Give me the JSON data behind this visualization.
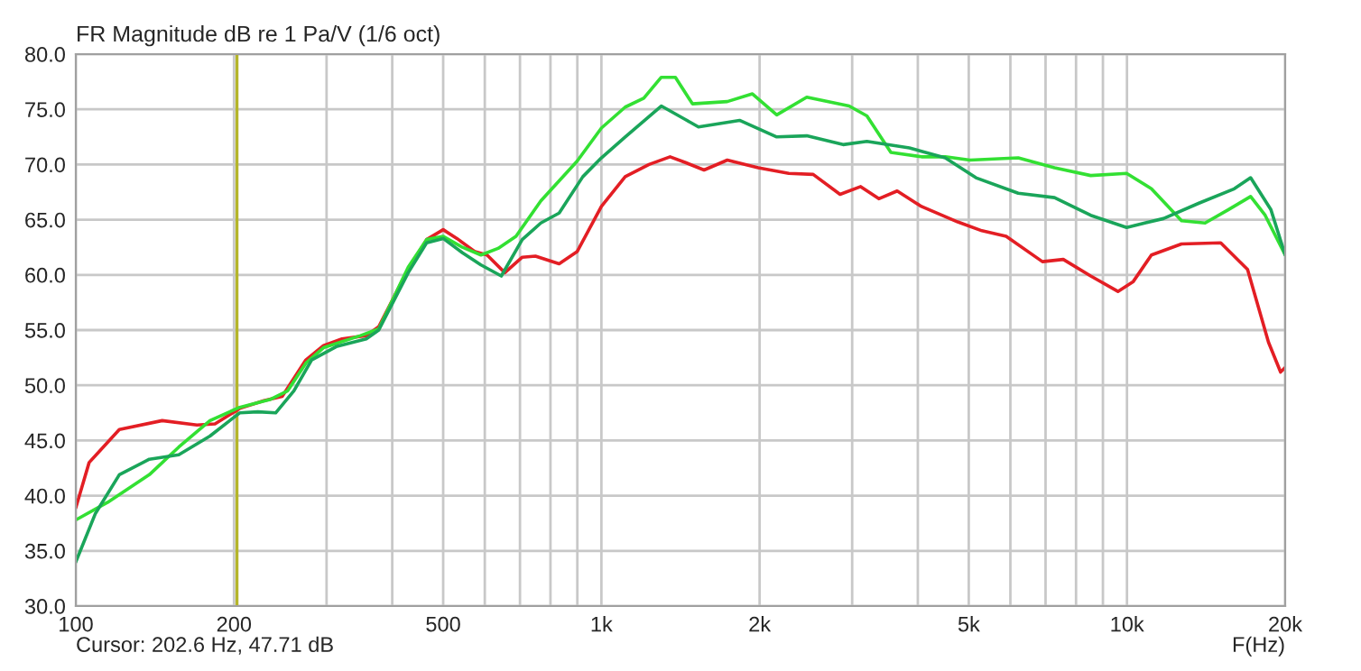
{
  "chart_data": {
    "type": "line",
    "title": "FR Magnitude dB re 1 Pa/V (1/6 oct)",
    "xlabel": "F(Hz)",
    "log": "x",
    "grid": true,
    "marker": "none",
    "line_style": "solid",
    "xlim": [
      100,
      20000
    ],
    "xticks": [
      100,
      200,
      {
        "value": 300,
        "label": null
      },
      {
        "value": 400,
        "label": null
      },
      500,
      {
        "value": 600,
        "label": null
      },
      {
        "value": 700,
        "label": null
      },
      {
        "value": 800,
        "label": null
      },
      {
        "value": 900,
        "label": null
      },
      {
        "value": 1000,
        "label": "1k"
      },
      {
        "value": 2000,
        "label": "2k"
      },
      {
        "value": 3000,
        "label": null
      },
      {
        "value": 4000,
        "label": null
      },
      {
        "value": 5000,
        "label": "5k"
      },
      {
        "value": 6000,
        "label": null
      },
      {
        "value": 7000,
        "label": null
      },
      {
        "value": 8000,
        "label": null
      },
      {
        "value": 9000,
        "label": null
      },
      {
        "value": 10000,
        "label": "10k"
      },
      {
        "value": 20000,
        "label": "20k"
      }
    ],
    "ylim": [
      30,
      80
    ],
    "yticks": [
      {
        "value": 30,
        "label": "30.0"
      },
      {
        "value": 35,
        "label": "35.0"
      },
      {
        "value": 40,
        "label": "40.0"
      },
      {
        "value": 45,
        "label": "45.0"
      },
      {
        "value": 50,
        "label": "50.0"
      },
      {
        "value": 55,
        "label": "55.0"
      },
      {
        "value": 60,
        "label": "60.0"
      },
      {
        "value": 65,
        "label": "65.0"
      },
      {
        "value": 70,
        "label": "70.0"
      },
      {
        "value": 75,
        "label": "75.0"
      },
      {
        "value": 80,
        "label": "80.0"
      }
    ],
    "ref_lines": [
      {
        "axis": "x",
        "value": 202.6,
        "color": "#b5b52a"
      }
    ],
    "annotations": [
      "Cursor: 202.6 Hz, 47.71 dB"
    ],
    "series": [
      {
        "color": "#e31e24",
        "x": [
          100,
          106,
          121,
          146,
          170,
          184,
          205,
          228,
          247,
          274,
          296,
          321,
          357,
          377,
          429,
          465,
          500,
          531,
          575,
          606,
          655,
          707,
          749,
          831,
          899,
          1000,
          1110,
          1232,
          1351,
          1442,
          1568,
          1736,
          1988,
          2273,
          2529,
          2845,
          3114,
          3372,
          3654,
          4064,
          4764,
          5296,
          5890,
          6905,
          7565,
          8530,
          9612,
          10280,
          11130,
          12700,
          15080,
          16960,
          18590,
          19600,
          20000
        ],
        "values": [
          38.9,
          43.0,
          46.0,
          46.8,
          46.4,
          46.5,
          47.9,
          48.6,
          49.0,
          52.3,
          53.6,
          54.2,
          54.5,
          55.3,
          60.5,
          63.2,
          64.1,
          63.3,
          62.1,
          61.8,
          60.2,
          61.6,
          61.7,
          61.0,
          62.1,
          66.2,
          68.9,
          70.0,
          70.7,
          70.2,
          69.5,
          70.4,
          69.7,
          69.2,
          69.1,
          67.3,
          68.0,
          66.9,
          67.6,
          66.2,
          64.8,
          64.0,
          63.5,
          61.2,
          61.4,
          59.9,
          58.5,
          59.4,
          61.8,
          62.8,
          62.9,
          60.5,
          53.9,
          51.2,
          51.6
        ]
      },
      {
        "color": "#33e033",
        "x": [
          100,
          115,
          138,
          157,
          180,
          205,
          234,
          253,
          274,
          296,
          348,
          377,
          429,
          465,
          500,
          544,
          590,
          636,
          688,
          767,
          899,
          1000,
          1110,
          1204,
          1300,
          1383,
          1490,
          1736,
          1938,
          2156,
          2459,
          2960,
          3200,
          3555,
          4064,
          4510,
          5027,
          6210,
          7280,
          8530,
          9986,
          11130,
          12700,
          14080,
          15580,
          17190,
          18320,
          20000
        ],
        "values": [
          37.8,
          39.4,
          41.9,
          44.4,
          46.8,
          48.0,
          48.7,
          49.5,
          52.0,
          53.4,
          54.5,
          55.1,
          60.7,
          63.2,
          63.5,
          62.5,
          61.8,
          62.4,
          63.5,
          66.7,
          70.3,
          73.3,
          75.2,
          76.0,
          77.9,
          77.9,
          75.5,
          75.7,
          76.4,
          74.5,
          76.1,
          75.3,
          74.4,
          71.1,
          70.7,
          70.7,
          70.4,
          70.6,
          69.7,
          69.0,
          69.2,
          67.8,
          64.9,
          64.7,
          65.9,
          67.1,
          65.4,
          61.8
        ]
      },
      {
        "color": "#1aa55a",
        "x": [
          100,
          109,
          121,
          138,
          157,
          180,
          205,
          222,
          240,
          260,
          281,
          313,
          357,
          377,
          429,
          465,
          500,
          544,
          590,
          645,
          707,
          767,
          831,
          922,
          1000,
          1110,
          1300,
          1442,
          1530,
          1832,
          2156,
          2459,
          2883,
          3200,
          3855,
          4510,
          5160,
          6210,
          7280,
          8530,
          9986,
          11730,
          13710,
          16000,
          17190,
          18790,
          20000
        ],
        "values": [
          34.0,
          38.4,
          41.9,
          43.3,
          43.7,
          45.4,
          47.5,
          47.6,
          47.5,
          49.5,
          52.3,
          53.5,
          54.2,
          55.0,
          60.2,
          62.9,
          63.3,
          62.0,
          60.9,
          59.9,
          63.2,
          64.7,
          65.6,
          68.9,
          70.6,
          72.5,
          75.3,
          74.1,
          73.4,
          74.0,
          72.5,
          72.6,
          71.8,
          72.1,
          71.5,
          70.6,
          68.8,
          67.4,
          67.0,
          65.4,
          64.3,
          65.1,
          66.5,
          67.8,
          68.8,
          65.9,
          61.8
        ]
      }
    ]
  }
}
